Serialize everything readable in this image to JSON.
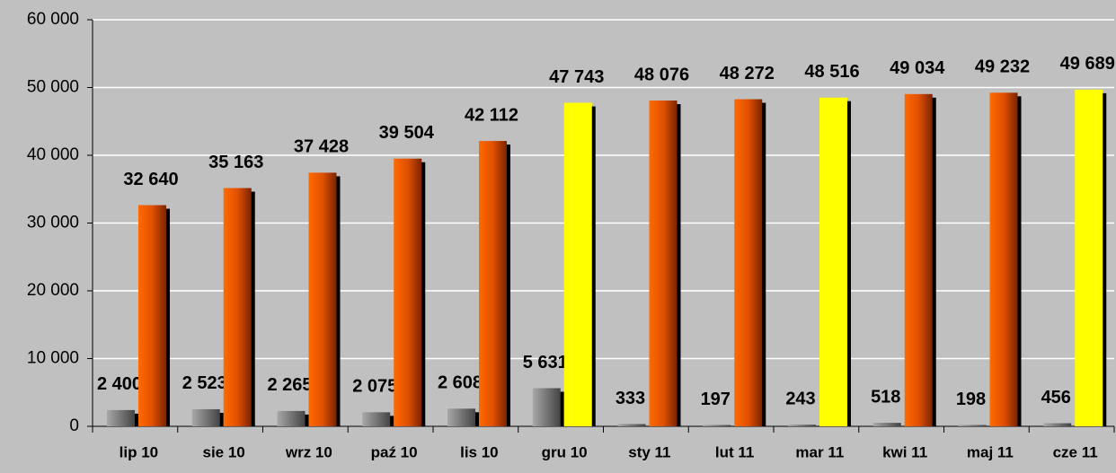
{
  "chart_data": {
    "type": "bar",
    "categories": [
      "lip 10",
      "sie 10",
      "wrz 10",
      "paź 10",
      "lis 10",
      "gru 10",
      "sty 11",
      "lut 11",
      "mar 11",
      "kwi 11",
      "maj 11",
      "cze 11"
    ],
    "series": [
      {
        "color": "#8c8c8c",
        "values": [
          2400,
          2523,
          2265,
          2075,
          2608,
          5631,
          333,
          197,
          243,
          518,
          198,
          456
        ],
        "value_labels": [
          "2 400",
          "2 523",
          "2 265",
          "2 075",
          "2 608",
          "5 631",
          "333",
          "197",
          "243",
          "518",
          "198",
          "456"
        ]
      },
      {
        "color": "#ff6600",
        "colors": [
          "#ff6600",
          "#ff6600",
          "#ff6600",
          "#ff6600",
          "#ff6600",
          "#ffff00",
          "#ff6600",
          "#ff6600",
          "#ffff00",
          "#ff6600",
          "#ff6600",
          "#ffff00"
        ],
        "values": [
          32640,
          35163,
          37428,
          39504,
          42112,
          47743,
          48076,
          48272,
          48516,
          49034,
          49232,
          49689
        ],
        "value_labels": [
          "32 640",
          "35 163",
          "37 428",
          "39 504",
          "42 112",
          "47 743",
          "48 076",
          "48 272",
          "48 516",
          "49 034",
          "49 232",
          "49 689"
        ]
      }
    ],
    "ylim": [
      0,
      60000
    ],
    "yticks": [
      0,
      {
        "value": 10000,
        "label": "10 000"
      },
      {
        "value": 20000,
        "label": "20 000"
      },
      {
        "value": 30000,
        "label": "30 000"
      },
      {
        "value": 40000,
        "label": "40 000"
      },
      {
        "value": 50000,
        "label": "50 000"
      },
      {
        "value": 60000,
        "label": "60 000"
      }
    ],
    "grid": true
  }
}
